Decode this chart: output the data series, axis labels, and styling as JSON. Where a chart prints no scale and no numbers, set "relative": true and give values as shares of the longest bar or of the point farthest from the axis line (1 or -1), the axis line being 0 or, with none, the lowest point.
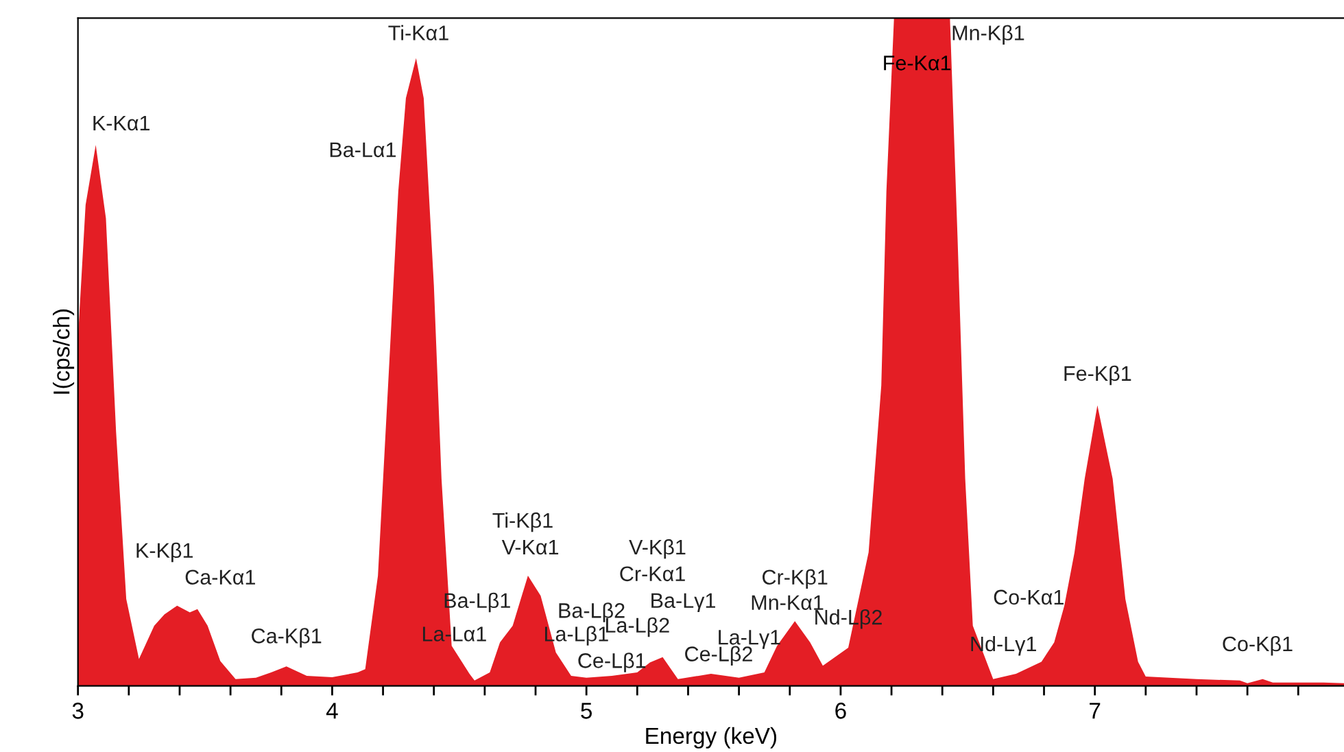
{
  "chart_data": {
    "type": "area",
    "relative": true,
    "xlabel": "Energy (keV)",
    "ylabel": "I(cps/ch)",
    "grid": false,
    "legend": false,
    "xlim": [
      3,
      7.98
    ],
    "xticks": [
      3,
      {
        "value": 3.2,
        "label": null
      },
      {
        "value": 3.4,
        "label": null
      },
      {
        "value": 3.6,
        "label": null
      },
      {
        "value": 3.8,
        "label": null
      },
      4,
      {
        "value": 4.2,
        "label": null
      },
      {
        "value": 4.4,
        "label": null
      },
      {
        "value": 4.6,
        "label": null
      },
      {
        "value": 4.8,
        "label": null
      },
      5,
      {
        "value": 5.2,
        "label": null
      },
      {
        "value": 5.4,
        "label": null
      },
      {
        "value": 5.6,
        "label": null
      },
      {
        "value": 5.8,
        "label": null
      },
      6,
      {
        "value": 6.2,
        "label": null
      },
      {
        "value": 6.4,
        "label": null
      },
      {
        "value": 6.6,
        "label": null
      },
      {
        "value": 6.8,
        "label": null
      },
      7,
      {
        "value": 7.2,
        "label": null
      },
      {
        "value": 7.4,
        "label": null
      },
      {
        "value": 7.6,
        "label": null
      },
      {
        "value": 7.8,
        "label": null
      }
    ],
    "series": [
      {
        "color": "#e41e25",
        "x": [
          3.0,
          3.03,
          3.07,
          3.11,
          3.15,
          3.19,
          3.24,
          3.3,
          3.34,
          3.39,
          3.44,
          3.47,
          3.51,
          3.56,
          3.62,
          3.7,
          3.76,
          3.82,
          3.9,
          4.0,
          4.1,
          4.13,
          4.18,
          4.22,
          4.26,
          4.29,
          4.33,
          4.36,
          4.4,
          4.43,
          4.47,
          4.54,
          4.56,
          4.62,
          4.66,
          4.71,
          4.77,
          4.82,
          4.88,
          4.94,
          5.0,
          5.1,
          5.2,
          5.25,
          5.3,
          5.36,
          5.49,
          5.6,
          5.7,
          5.75,
          5.82,
          5.88,
          5.93,
          6.03,
          6.11,
          6.16,
          6.18,
          6.21,
          6.43,
          6.46,
          6.49,
          6.52,
          6.6,
          6.69,
          6.79,
          6.84,
          6.88,
          6.92,
          6.96,
          7.01,
          7.07,
          7.12,
          7.17,
          7.2,
          7.4,
          7.57,
          7.6,
          7.66,
          7.7,
          7.9,
          7.98
        ],
        "values": [
          0.52,
          0.72,
          0.81,
          0.7,
          0.38,
          0.13,
          0.04,
          0.09,
          0.107,
          0.12,
          0.11,
          0.115,
          0.09,
          0.037,
          0.01,
          0.012,
          0.02,
          0.029,
          0.015,
          0.013,
          0.02,
          0.025,
          0.165,
          0.45,
          0.74,
          0.88,
          0.94,
          0.88,
          0.6,
          0.31,
          0.06,
          0.018,
          0.008,
          0.02,
          0.065,
          0.09,
          0.165,
          0.135,
          0.05,
          0.015,
          0.012,
          0.015,
          0.02,
          0.035,
          0.043,
          0.01,
          0.018,
          0.012,
          0.02,
          0.06,
          0.097,
          0.065,
          0.03,
          0.057,
          0.2,
          0.45,
          0.74,
          1,
          1,
          0.67,
          0.31,
          0.09,
          0.01,
          0.018,
          0.036,
          0.065,
          0.12,
          0.2,
          0.31,
          0.42,
          0.31,
          0.13,
          0.036,
          0.014,
          0.01,
          0.008,
          0.004,
          0.01,
          0.005,
          0.005,
          0.004
        ]
      }
    ],
    "annotations": [
      "K-Kα1",
      "Ti-Kα1",
      "Ba-Lα1",
      "K-Kβ1",
      "Ca-Kα1",
      "Ca-Kβ1",
      "La-Lα1",
      "Ti-Kβ1",
      "V-Kα1",
      "Ba-Lβ1",
      "Ba-Lβ2",
      "La-Lβ1",
      "Ce-Lβ1",
      "V-Kβ1",
      "Cr-Kα1",
      "Ba-Lγ1",
      "La-Lβ2",
      "Ce-Lβ2",
      "La-Lγ1",
      "Cr-Kβ1",
      "Mn-Kα1",
      "Nd-Lβ2",
      "Fe-Kα1",
      "Mn-Kβ1",
      "Nd-Lγ1",
      "Fe-Kβ1",
      "Co-Kα1",
      "Co-Kβ1"
    ]
  }
}
